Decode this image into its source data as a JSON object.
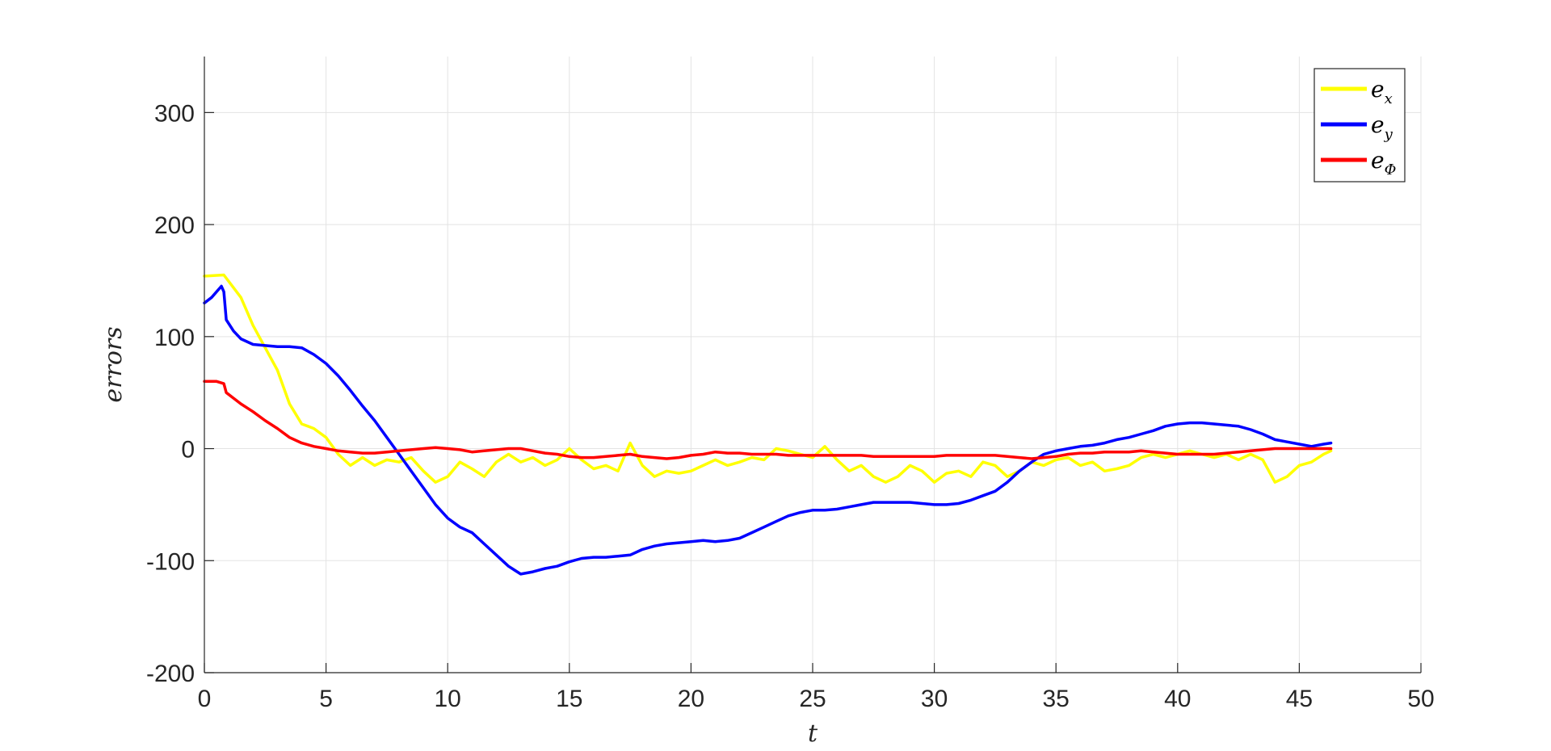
{
  "chart_data": {
    "type": "line",
    "title": "",
    "xlabel": "t",
    "ylabel": "errors",
    "xlim": [
      0,
      50
    ],
    "ylim": [
      -200,
      350
    ],
    "xticks": [
      0,
      5,
      10,
      15,
      20,
      25,
      30,
      35,
      40,
      45,
      50
    ],
    "yticks": [
      -200,
      -100,
      0,
      100,
      200,
      300
    ],
    "xtick_labels": [
      "0",
      "5",
      "10",
      "15",
      "20",
      "25",
      "30",
      "35",
      "40",
      "45",
      "50"
    ],
    "ytick_labels": [
      "-200",
      "-100",
      "0",
      "100",
      "200",
      "300"
    ],
    "grid": true,
    "legend_position": "top-right",
    "series": [
      {
        "name": "e_x",
        "legend_base": "e",
        "legend_sub": "x",
        "color": "#FFFF00",
        "points": [
          [
            0,
            154
          ],
          [
            0.8,
            155
          ],
          [
            1.5,
            135
          ],
          [
            2,
            110
          ],
          [
            2.5,
            90
          ],
          [
            3,
            70
          ],
          [
            3.5,
            40
          ],
          [
            4,
            22
          ],
          [
            4.5,
            18
          ],
          [
            5,
            10
          ],
          [
            5.5,
            -5
          ],
          [
            6,
            -15
          ],
          [
            6.5,
            -8
          ],
          [
            7,
            -15
          ],
          [
            7.5,
            -10
          ],
          [
            8,
            -12
          ],
          [
            8.5,
            -8
          ],
          [
            9,
            -20
          ],
          [
            9.5,
            -30
          ],
          [
            10,
            -25
          ],
          [
            10.5,
            -12
          ],
          [
            11,
            -18
          ],
          [
            11.5,
            -25
          ],
          [
            12,
            -12
          ],
          [
            12.5,
            -5
          ],
          [
            13,
            -12
          ],
          [
            13.5,
            -8
          ],
          [
            14,
            -15
          ],
          [
            14.5,
            -10
          ],
          [
            15,
            0
          ],
          [
            15.5,
            -10
          ],
          [
            16,
            -18
          ],
          [
            16.5,
            -15
          ],
          [
            17,
            -20
          ],
          [
            17.5,
            5
          ],
          [
            18,
            -15
          ],
          [
            18.5,
            -25
          ],
          [
            19,
            -20
          ],
          [
            19.5,
            -22
          ],
          [
            20,
            -20
          ],
          [
            20.5,
            -15
          ],
          [
            21,
            -10
          ],
          [
            21.5,
            -15
          ],
          [
            22,
            -12
          ],
          [
            22.5,
            -8
          ],
          [
            23,
            -10
          ],
          [
            23.5,
            0
          ],
          [
            24,
            -2
          ],
          [
            24.5,
            -5
          ],
          [
            25,
            -8
          ],
          [
            25.5,
            2
          ],
          [
            26,
            -10
          ],
          [
            26.5,
            -20
          ],
          [
            27,
            -15
          ],
          [
            27.5,
            -25
          ],
          [
            28,
            -30
          ],
          [
            28.5,
            -25
          ],
          [
            29,
            -15
          ],
          [
            29.5,
            -20
          ],
          [
            30,
            -30
          ],
          [
            30.5,
            -22
          ],
          [
            31,
            -20
          ],
          [
            31.5,
            -25
          ],
          [
            32,
            -12
          ],
          [
            32.5,
            -15
          ],
          [
            33,
            -25
          ],
          [
            33.5,
            -20
          ],
          [
            34,
            -12
          ],
          [
            34.5,
            -15
          ],
          [
            35,
            -10
          ],
          [
            35.5,
            -8
          ],
          [
            36,
            -15
          ],
          [
            36.5,
            -12
          ],
          [
            37,
            -20
          ],
          [
            37.5,
            -18
          ],
          [
            38,
            -15
          ],
          [
            38.5,
            -8
          ],
          [
            39,
            -5
          ],
          [
            39.5,
            -8
          ],
          [
            40,
            -5
          ],
          [
            40.5,
            -2
          ],
          [
            41,
            -5
          ],
          [
            41.5,
            -8
          ],
          [
            42,
            -5
          ],
          [
            42.5,
            -10
          ],
          [
            43,
            -5
          ],
          [
            43.5,
            -10
          ],
          [
            44,
            -30
          ],
          [
            44.5,
            -25
          ],
          [
            45,
            -15
          ],
          [
            45.5,
            -12
          ],
          [
            46,
            -5
          ],
          [
            46.3,
            -2
          ]
        ]
      },
      {
        "name": "e_y",
        "legend_base": "e",
        "legend_sub": "y",
        "color": "#0000FF",
        "points": [
          [
            0,
            130
          ],
          [
            0.3,
            135
          ],
          [
            0.7,
            145
          ],
          [
            0.8,
            140
          ],
          [
            0.9,
            115
          ],
          [
            1.2,
            105
          ],
          [
            1.5,
            98
          ],
          [
            2,
            93
          ],
          [
            2.5,
            92
          ],
          [
            3,
            91
          ],
          [
            3.5,
            91
          ],
          [
            4,
            90
          ],
          [
            4.5,
            84
          ],
          [
            5,
            76
          ],
          [
            5.5,
            65
          ],
          [
            6,
            52
          ],
          [
            6.5,
            38
          ],
          [
            7,
            25
          ],
          [
            7.5,
            10
          ],
          [
            8,
            -5
          ],
          [
            8.5,
            -20
          ],
          [
            9,
            -35
          ],
          [
            9.5,
            -50
          ],
          [
            10,
            -62
          ],
          [
            10.5,
            -70
          ],
          [
            11,
            -75
          ],
          [
            11.5,
            -85
          ],
          [
            12,
            -95
          ],
          [
            12.5,
            -105
          ],
          [
            13,
            -112
          ],
          [
            13.5,
            -110
          ],
          [
            14,
            -107
          ],
          [
            14.5,
            -105
          ],
          [
            15,
            -101
          ],
          [
            15.5,
            -98
          ],
          [
            16,
            -97
          ],
          [
            16.5,
            -97
          ],
          [
            17,
            -96
          ],
          [
            17.5,
            -95
          ],
          [
            18,
            -90
          ],
          [
            18.5,
            -87
          ],
          [
            19,
            -85
          ],
          [
            19.5,
            -84
          ],
          [
            20,
            -83
          ],
          [
            20.5,
            -82
          ],
          [
            21,
            -83
          ],
          [
            21.5,
            -82
          ],
          [
            22,
            -80
          ],
          [
            22.5,
            -75
          ],
          [
            23,
            -70
          ],
          [
            23.5,
            -65
          ],
          [
            24,
            -60
          ],
          [
            24.5,
            -57
          ],
          [
            25,
            -55
          ],
          [
            25.5,
            -55
          ],
          [
            26,
            -54
          ],
          [
            26.5,
            -52
          ],
          [
            27,
            -50
          ],
          [
            27.5,
            -48
          ],
          [
            28,
            -48
          ],
          [
            28.5,
            -48
          ],
          [
            29,
            -48
          ],
          [
            29.5,
            -49
          ],
          [
            30,
            -50
          ],
          [
            30.5,
            -50
          ],
          [
            31,
            -49
          ],
          [
            31.5,
            -46
          ],
          [
            32,
            -42
          ],
          [
            32.5,
            -38
          ],
          [
            33,
            -30
          ],
          [
            33.5,
            -20
          ],
          [
            34,
            -12
          ],
          [
            34.5,
            -5
          ],
          [
            35,
            -2
          ],
          [
            35.5,
            0
          ],
          [
            36,
            2
          ],
          [
            36.5,
            3
          ],
          [
            37,
            5
          ],
          [
            37.5,
            8
          ],
          [
            38,
            10
          ],
          [
            38.5,
            13
          ],
          [
            39,
            16
          ],
          [
            39.5,
            20
          ],
          [
            40,
            22
          ],
          [
            40.5,
            23
          ],
          [
            41,
            23
          ],
          [
            41.5,
            22
          ],
          [
            42,
            21
          ],
          [
            42.5,
            20
          ],
          [
            43,
            17
          ],
          [
            43.5,
            13
          ],
          [
            44,
            8
          ],
          [
            44.5,
            6
          ],
          [
            45,
            4
          ],
          [
            45.5,
            2
          ],
          [
            46,
            4
          ],
          [
            46.3,
            5
          ]
        ]
      },
      {
        "name": "e_Φ",
        "legend_base": "e",
        "legend_sub": "Φ",
        "color": "#FF0000",
        "points": [
          [
            0,
            60
          ],
          [
            0.5,
            60
          ],
          [
            0.8,
            58
          ],
          [
            0.9,
            50
          ],
          [
            1.2,
            45
          ],
          [
            1.5,
            40
          ],
          [
            2,
            33
          ],
          [
            2.5,
            25
          ],
          [
            3,
            18
          ],
          [
            3.5,
            10
          ],
          [
            4,
            5
          ],
          [
            4.5,
            2
          ],
          [
            5,
            0
          ],
          [
            5.5,
            -2
          ],
          [
            6,
            -3
          ],
          [
            6.5,
            -4
          ],
          [
            7,
            -4
          ],
          [
            7.5,
            -3
          ],
          [
            8,
            -2
          ],
          [
            8.5,
            -1
          ],
          [
            9,
            0
          ],
          [
            9.5,
            1
          ],
          [
            10,
            0
          ],
          [
            10.5,
            -1
          ],
          [
            11,
            -3
          ],
          [
            11.5,
            -2
          ],
          [
            12,
            -1
          ],
          [
            12.5,
            0
          ],
          [
            13,
            0
          ],
          [
            13.5,
            -2
          ],
          [
            14,
            -4
          ],
          [
            14.5,
            -5
          ],
          [
            15,
            -7
          ],
          [
            15.5,
            -8
          ],
          [
            16,
            -8
          ],
          [
            16.5,
            -7
          ],
          [
            17,
            -6
          ],
          [
            17.5,
            -5
          ],
          [
            18,
            -7
          ],
          [
            18.5,
            -8
          ],
          [
            19,
            -9
          ],
          [
            19.5,
            -8
          ],
          [
            20,
            -6
          ],
          [
            20.5,
            -5
          ],
          [
            21,
            -3
          ],
          [
            21.5,
            -4
          ],
          [
            22,
            -4
          ],
          [
            22.5,
            -5
          ],
          [
            23,
            -5
          ],
          [
            23.5,
            -5
          ],
          [
            24,
            -6
          ],
          [
            24.5,
            -6
          ],
          [
            25,
            -6
          ],
          [
            25.5,
            -6
          ],
          [
            26,
            -6
          ],
          [
            26.5,
            -6
          ],
          [
            27,
            -6
          ],
          [
            27.5,
            -7
          ],
          [
            28,
            -7
          ],
          [
            28.5,
            -7
          ],
          [
            29,
            -7
          ],
          [
            29.5,
            -7
          ],
          [
            30,
            -7
          ],
          [
            30.5,
            -6
          ],
          [
            31,
            -6
          ],
          [
            31.5,
            -6
          ],
          [
            32,
            -6
          ],
          [
            32.5,
            -6
          ],
          [
            33,
            -7
          ],
          [
            33.5,
            -8
          ],
          [
            34,
            -9
          ],
          [
            34.5,
            -8
          ],
          [
            35,
            -7
          ],
          [
            35.5,
            -5
          ],
          [
            36,
            -4
          ],
          [
            36.5,
            -4
          ],
          [
            37,
            -3
          ],
          [
            37.5,
            -3
          ],
          [
            38,
            -3
          ],
          [
            38.5,
            -2
          ],
          [
            39,
            -3
          ],
          [
            39.5,
            -4
          ],
          [
            40,
            -5
          ],
          [
            40.5,
            -5
          ],
          [
            41,
            -5
          ],
          [
            41.5,
            -5
          ],
          [
            42,
            -4
          ],
          [
            42.5,
            -3
          ],
          [
            43,
            -2
          ],
          [
            43.5,
            -1
          ],
          [
            44,
            0
          ],
          [
            44.5,
            0
          ],
          [
            45,
            0
          ],
          [
            45.5,
            0
          ],
          [
            46,
            0
          ],
          [
            46.3,
            0
          ]
        ]
      }
    ]
  }
}
